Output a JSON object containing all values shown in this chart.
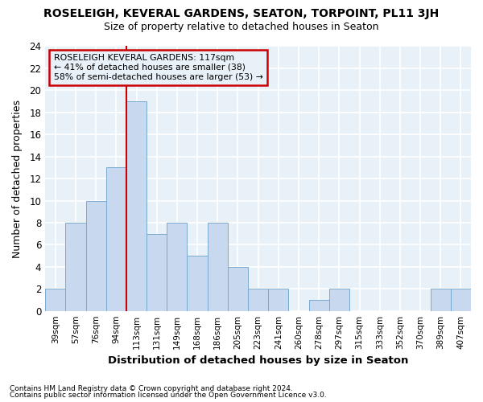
{
  "title": "ROSELEIGH, KEVERAL GARDENS, SEATON, TORPOINT, PL11 3JH",
  "subtitle": "Size of property relative to detached houses in Seaton",
  "xlabel": "Distribution of detached houses by size in Seaton",
  "ylabel": "Number of detached properties",
  "categories": [
    "39sqm",
    "57sqm",
    "76sqm",
    "94sqm",
    "113sqm",
    "131sqm",
    "149sqm",
    "168sqm",
    "186sqm",
    "205sqm",
    "223sqm",
    "241sqm",
    "260sqm",
    "278sqm",
    "297sqm",
    "315sqm",
    "333sqm",
    "352sqm",
    "370sqm",
    "389sqm",
    "407sqm"
  ],
  "values": [
    2,
    8,
    10,
    13,
    19,
    7,
    8,
    5,
    8,
    4,
    2,
    2,
    0,
    1,
    2,
    0,
    0,
    0,
    0,
    2,
    2
  ],
  "bar_color": "#c8d8ee",
  "bar_edge_color": "#7aaad0",
  "highlight_index": 4,
  "highlight_color": "#cc0000",
  "ylim": [
    0,
    24
  ],
  "yticks": [
    0,
    2,
    4,
    6,
    8,
    10,
    12,
    14,
    16,
    18,
    20,
    22,
    24
  ],
  "annotation_title": "ROSELEIGH KEVERAL GARDENS: 117sqm",
  "annotation_line1": "← 41% of detached houses are smaller (38)",
  "annotation_line2": "58% of semi-detached houses are larger (53) →",
  "footer_line1": "Contains HM Land Registry data © Crown copyright and database right 2024.",
  "footer_line2": "Contains public sector information licensed under the Open Government Licence v3.0.",
  "background_color": "#ffffff",
  "plot_bg_color": "#e8f0f8",
  "grid_color": "#ffffff"
}
